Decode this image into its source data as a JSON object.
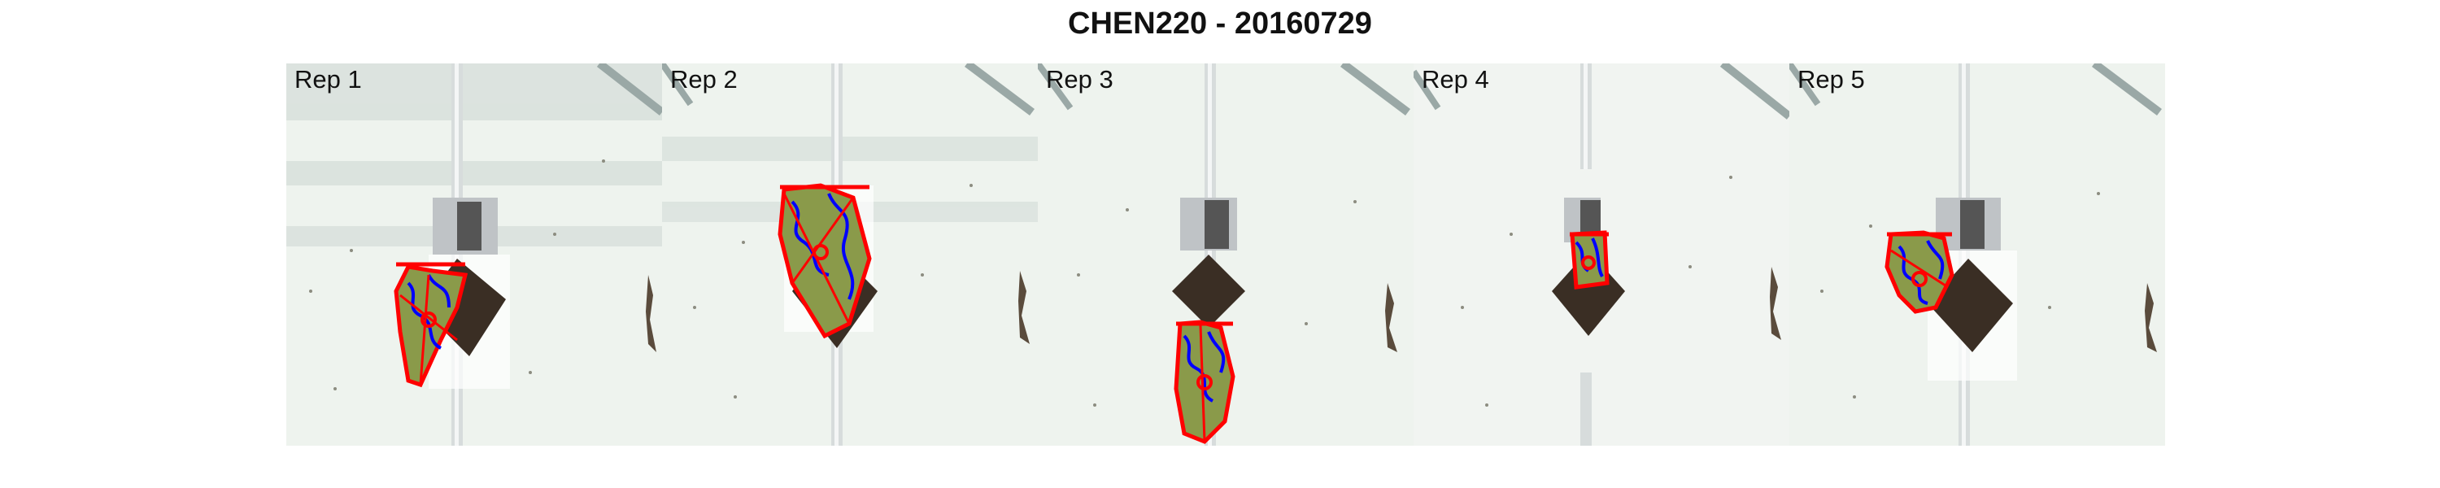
{
  "title": "CHEN220 - 20160729",
  "panels": [
    {
      "label": "Rep 1"
    },
    {
      "label": "Rep 2"
    },
    {
      "label": "Rep 3"
    },
    {
      "label": "Rep 4"
    },
    {
      "label": "Rep 5"
    }
  ],
  "colors": {
    "background": "#eef3ee",
    "contour": "#ff0000",
    "inner_contour": "#0000ff",
    "leaf": "#8a9a4a",
    "pot": "#4a3a2a"
  }
}
